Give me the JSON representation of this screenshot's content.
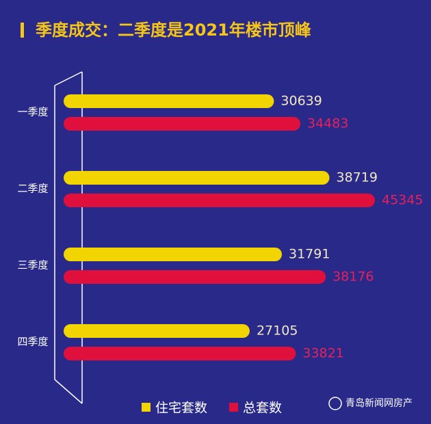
{
  "chart_data": {
    "type": "hbar",
    "title": "季度成交：二季度是2021年楼市顶峰",
    "categories": [
      "一季度",
      "二季度",
      "三季度",
      "四季度"
    ],
    "series": [
      {
        "name": "住宅套数",
        "color": "#f2d500",
        "values": [
          30639,
          38719,
          31791,
          27105
        ]
      },
      {
        "name": "总套数",
        "color": "#e0103c",
        "values": [
          34483,
          45345,
          38176,
          33821
        ]
      }
    ],
    "legend": "bottom",
    "source": "青岛新闻网房产"
  }
}
